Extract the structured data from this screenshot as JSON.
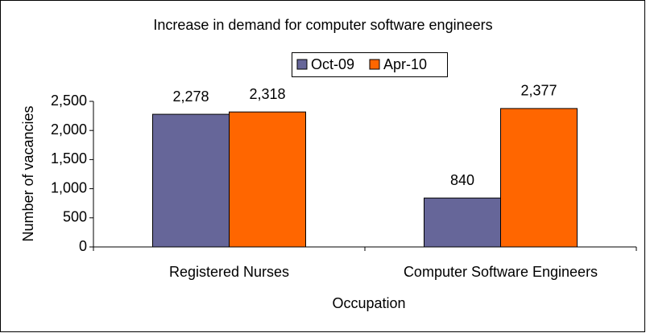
{
  "chart_data": {
    "type": "bar",
    "title": "Increase in demand for computer software engineers",
    "x_label": "Occupation",
    "y_label": "Number of vacancies",
    "categories": [
      "Registered Nurses",
      "Computer Software Engineers"
    ],
    "series": [
      {
        "name": "Oct-09",
        "color": "#666699",
        "values": [
          2278,
          840
        ],
        "value_labels": [
          "2,278",
          "840"
        ]
      },
      {
        "name": "Apr-10",
        "color": "#ff6600",
        "values": [
          2318,
          2377
        ],
        "value_labels": [
          "2,318",
          "2,377"
        ]
      }
    ],
    "ylim": [
      0,
      2500
    ],
    "yticks": [
      0,
      500,
      {
        "value": 1000,
        "label": "1,000"
      },
      {
        "value": 1500,
        "label": "1,500"
      },
      {
        "value": 2000,
        "label": "2,000"
      },
      {
        "value": 2500,
        "label": "2,500"
      }
    ],
    "grid": false,
    "legend": "top"
  }
}
